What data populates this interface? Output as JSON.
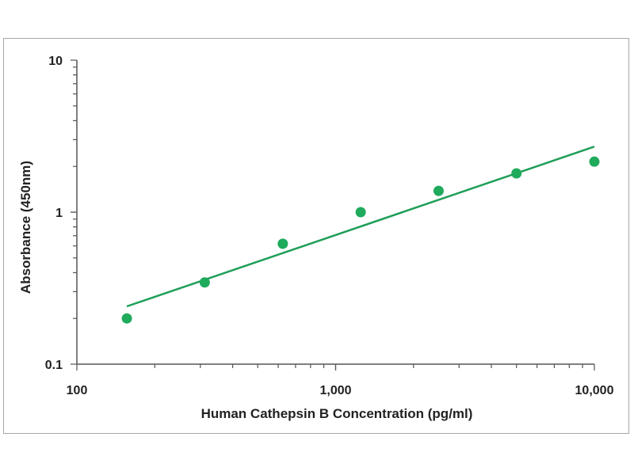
{
  "chart_data": {
    "type": "scatter",
    "title": "",
    "xlabel": "Human Cathepsin B Concentration (pg/ml)",
    "ylabel": "Absorbance (450nm)",
    "xscale": "log",
    "yscale": "log",
    "xlim": [
      100,
      10000
    ],
    "ylim": [
      0.1,
      10
    ],
    "x_ticks": [
      {
        "value": 100,
        "label": "100"
      },
      {
        "value": 1000,
        "label": "1,000"
      },
      {
        "value": 10000,
        "label": "10,000"
      }
    ],
    "y_ticks": [
      {
        "value": 0.1,
        "label": "0.1"
      },
      {
        "value": 1,
        "label": "1"
      },
      {
        "value": 10,
        "label": "10"
      }
    ],
    "grid": false,
    "legend": "none",
    "points": [
      {
        "x": 156,
        "y": 0.2
      },
      {
        "x": 312,
        "y": 0.345
      },
      {
        "x": 625,
        "y": 0.62
      },
      {
        "x": 1250,
        "y": 1.0
      },
      {
        "x": 2500,
        "y": 1.38
      },
      {
        "x": 5000,
        "y": 1.8
      },
      {
        "x": 10000,
        "y": 2.15
      }
    ],
    "trendline": {
      "type": "power",
      "from": {
        "x": 156,
        "y": 0.24
      },
      "to": {
        "x": 10000,
        "y": 2.7
      }
    },
    "colors": {
      "points": "#1faa5c",
      "line": "#1f9e57",
      "axis": "#555555"
    }
  }
}
